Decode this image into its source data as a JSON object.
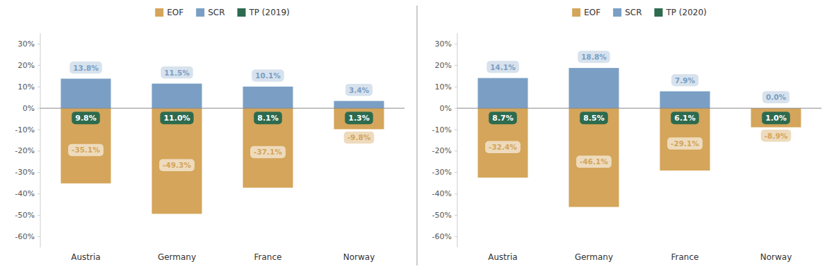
{
  "chart_data": [
    {
      "type": "bar",
      "categories": [
        "Austria",
        "Germany",
        "France",
        "Norway"
      ],
      "series": [
        {
          "name": "EOF",
          "color": "#D4A55A",
          "values": [
            -35.1,
            -49.3,
            -37.1,
            -9.8
          ],
          "value_labels": [
            "-35.1%",
            "-49.3%",
            "-37.1%",
            "-9.8%"
          ]
        },
        {
          "name": "SCR",
          "color": "#7B9FC4",
          "values": [
            13.8,
            11.5,
            10.1,
            3.4
          ],
          "value_labels": [
            "13.8%",
            "11.5%",
            "10.1%",
            "3.4%"
          ]
        },
        {
          "name": "TP (2019)",
          "type": "label",
          "color": "#2D6B4F",
          "values": [
            9.8,
            11.0,
            8.1,
            1.3
          ],
          "value_labels": [
            "9.8%",
            "11.0%",
            "8.1%",
            "1.3%"
          ]
        }
      ],
      "ylim": [
        -65,
        35
      ],
      "yticks": [
        {
          "value": -60,
          "label": "-60%"
        },
        {
          "value": -50,
          "label": "-50%"
        },
        {
          "value": -40,
          "label": "-40%"
        },
        {
          "value": -30,
          "label": "-30%"
        },
        {
          "value": -20,
          "label": "-20%"
        },
        {
          "value": -10,
          "label": "-10%"
        },
        {
          "value": 0,
          "label": "0%"
        },
        {
          "value": 10,
          "label": "10%"
        },
        {
          "value": 20,
          "label": "20%"
        },
        {
          "value": 30,
          "label": "30%"
        }
      ],
      "grid": false,
      "legend": "top",
      "data_labels": true
    },
    {
      "type": "bar",
      "categories": [
        "Austria",
        "Germany",
        "France",
        "Norway"
      ],
      "series": [
        {
          "name": "EOF",
          "color": "#D4A55A",
          "values": [
            -32.4,
            -46.1,
            -29.1,
            -8.9
          ],
          "value_labels": [
            "-32.4%",
            "-46.1%",
            "-29.1%",
            "-8.9%"
          ]
        },
        {
          "name": "SCR",
          "color": "#7B9FC4",
          "values": [
            14.1,
            18.8,
            7.9,
            0.0
          ],
          "value_labels": [
            "14.1%",
            "18.8%",
            "7.9%",
            "0.0%"
          ]
        },
        {
          "name": "TP (2020)",
          "type": "label",
          "color": "#2D6B4F",
          "values": [
            8.7,
            8.5,
            6.1,
            1.0
          ],
          "value_labels": [
            "8.7%",
            "8.5%",
            "6.1%",
            "1.0%"
          ]
        }
      ],
      "ylim": [
        -65,
        35
      ],
      "yticks": [
        {
          "value": -60,
          "label": "-60%"
        },
        {
          "value": -50,
          "label": "-50%"
        },
        {
          "value": -40,
          "label": "-40%"
        },
        {
          "value": -30,
          "label": "-30%"
        },
        {
          "value": -20,
          "label": "-20%"
        },
        {
          "value": -10,
          "label": "-10%"
        },
        {
          "value": 0,
          "label": "0%"
        },
        {
          "value": 10,
          "label": "10%"
        },
        {
          "value": 20,
          "label": "20%"
        },
        {
          "value": 30,
          "label": "30%"
        }
      ],
      "grid": false,
      "legend": "top",
      "data_labels": true
    }
  ]
}
